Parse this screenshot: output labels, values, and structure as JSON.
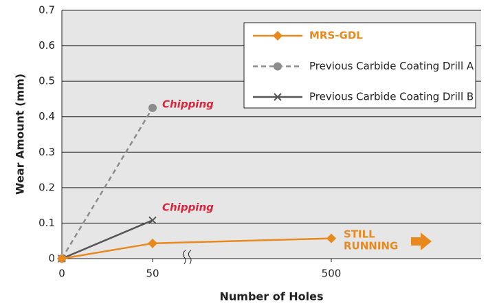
{
  "chart_data": {
    "type": "line",
    "categories": [
      "0",
      "50",
      "500"
    ],
    "series": [
      {
        "name": "MRS-GDL",
        "color": "#e8891e",
        "marker": "diamond",
        "dash": "solid",
        "values": [
          0,
          0.043,
          0.057
        ]
      },
      {
        "name": "Previous Carbide Coating Drill A",
        "color": "#8c8c8c",
        "marker": "circle",
        "dash": "dashed",
        "values": [
          0,
          0.425,
          null
        ]
      },
      {
        "name": "Previous Carbide Coating Drill B",
        "color": "#555555",
        "marker": "x",
        "dash": "solid",
        "values": [
          0,
          0.108,
          null
        ]
      }
    ],
    "ylim": [
      0,
      0.7
    ],
    "yticks": [
      0,
      0.1,
      0.2,
      0.3,
      0.4,
      0.5,
      0.6,
      0.7
    ],
    "grid": true,
    "xlabel": "Number of Holes",
    "ylabel": "Wear Amount (mm)",
    "annotations": [
      {
        "text": "Chipping",
        "color": "#d9263f"
      },
      {
        "text": "Chipping",
        "color": "#d9263f"
      },
      {
        "lines": [
          "STILL",
          "RUNNING"
        ],
        "color": "#e8891e"
      }
    ]
  }
}
